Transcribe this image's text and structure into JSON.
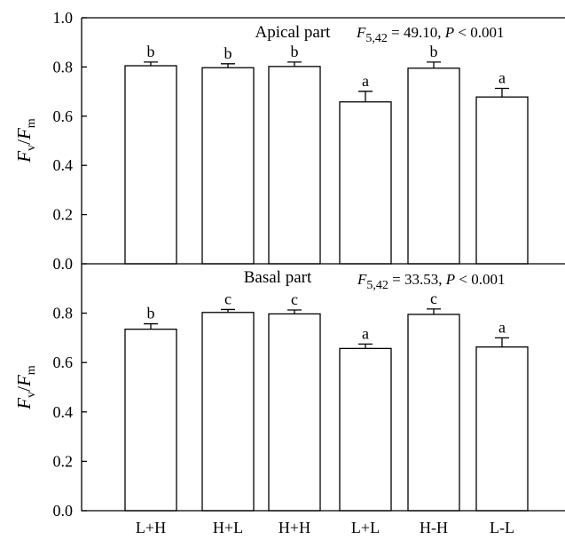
{
  "chart_data": [
    {
      "type": "bar",
      "title": "Apical part",
      "stat": "F5,42 = 49.10, P < 0.001",
      "stat_parts": {
        "f": "F",
        "df": "5,42",
        "f_value": " = 49.10, ",
        "p": "P",
        "p_value": " < 0.001"
      },
      "categories": [
        "L+H",
        "H+L",
        "H+H",
        "L+L",
        "H-H",
        "L-L"
      ],
      "values": [
        0.805,
        0.797,
        0.802,
        0.658,
        0.795,
        0.678
      ],
      "errors": [
        0.015,
        0.016,
        0.018,
        0.043,
        0.025,
        0.035
      ],
      "letters": [
        "b",
        "b",
        "b",
        "a",
        "b",
        "a"
      ],
      "ylabel_parts": {
        "base": "F",
        "num_sub": "v",
        "sep": "/",
        "den": "F",
        "den_sub": "m"
      },
      "ylim": [
        0.0,
        1.0
      ],
      "yticks": [
        "0.0",
        "0.2",
        "0.4",
        "0.6",
        "0.8",
        "1.0"
      ],
      "grid": false,
      "legend": "none"
    },
    {
      "type": "bar",
      "title": "Basal part",
      "stat": "F5,42 = 33.53, P < 0.001",
      "stat_parts": {
        "f": "F",
        "df": "5,42",
        "f_value": " = 33.53, ",
        "p": "P",
        "p_value": " < 0.001"
      },
      "categories": [
        "L+H",
        "H+L",
        "H+H",
        "L+L",
        "H-H",
        "L-L"
      ],
      "values": [
        0.735,
        0.803,
        0.797,
        0.657,
        0.795,
        0.663
      ],
      "errors": [
        0.022,
        0.012,
        0.016,
        0.018,
        0.022,
        0.037
      ],
      "letters": [
        "b",
        "c",
        "c",
        "a",
        "c",
        "a"
      ],
      "ylabel_parts": {
        "base": "F",
        "num_sub": "v",
        "sep": "/",
        "den": "F",
        "den_sub": "m"
      },
      "ylim": [
        0.0,
        1.0
      ],
      "yticks": [
        "0.0",
        "0.2",
        "0.4",
        "0.6",
        "0.8"
      ],
      "grid": false,
      "legend": "none"
    }
  ],
  "x_tick_labels": [
    "L+H",
    "H+L",
    "H+H",
    "L+L",
    "H-H",
    "L-L"
  ]
}
